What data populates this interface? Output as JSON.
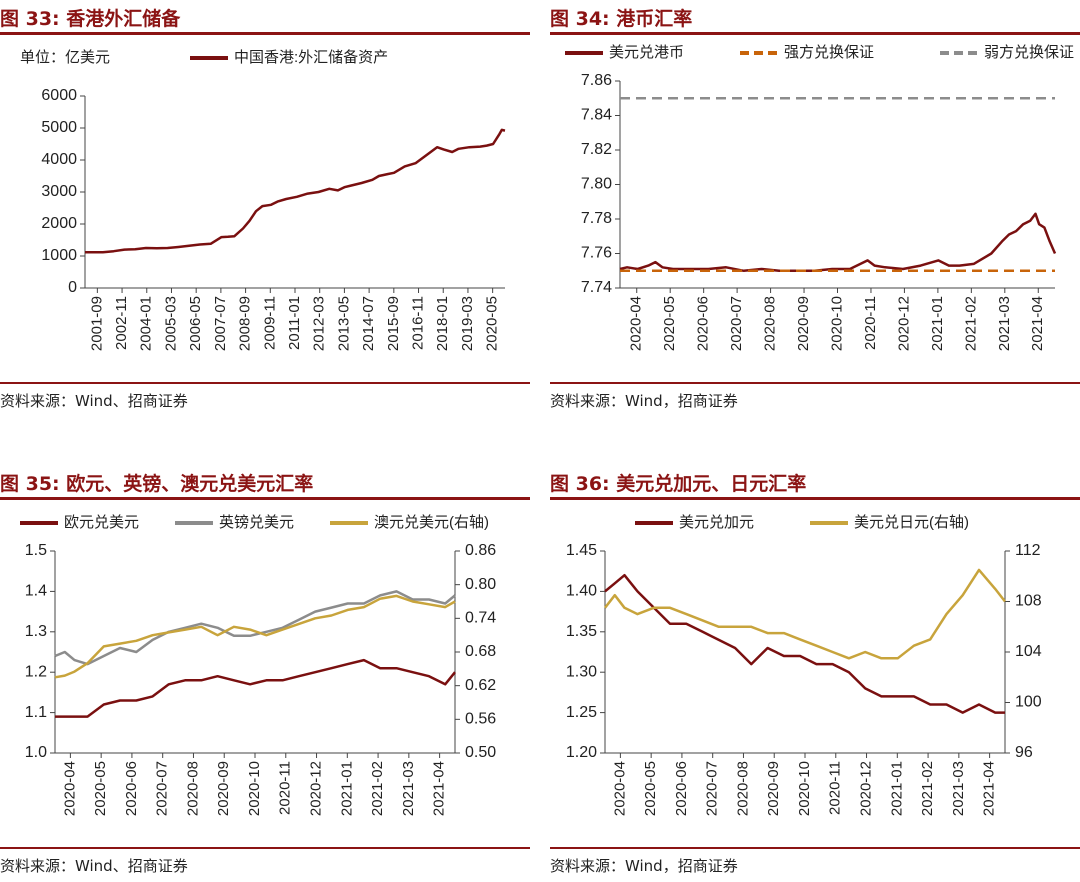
{
  "colors": {
    "brand": "#8b1414",
    "maroon": "#7a1010",
    "orange": "#c8640a",
    "gray": "#8c8c8c",
    "gold": "#c8a43c"
  },
  "panels": [
    {
      "title": "图 33:  香港外汇储备",
      "source": "资料来源：Wind、招商证券"
    },
    {
      "title": "图 34:  港币汇率",
      "source": "资料来源：Wind，招商证券"
    },
    {
      "title": "图 35:  欧元、英镑、澳元兑美元汇率",
      "source": "资料来源：Wind、招商证券"
    },
    {
      "title": "图 36:  美元兑加元、日元汇率",
      "source": "资料来源：Wind，招商证券"
    }
  ],
  "chart_data": [
    {
      "type": "line",
      "title": "香港外汇储备",
      "unit_label": "单位：亿美元",
      "ylim": [
        0,
        6000
      ],
      "yticks": [
        "0",
        "1000",
        "2000",
        "3000",
        "4000",
        "5000",
        "6000"
      ],
      "xticks": [
        "2001-09",
        "2002-11",
        "2004-01",
        "2005-03",
        "2006-05",
        "2007-07",
        "2008-09",
        "2009-11",
        "2011-01",
        "2012-03",
        "2013-05",
        "2014-07",
        "2015-09",
        "2016-11",
        "2018-01",
        "2019-03",
        "2020-05"
      ],
      "series": [
        {
          "name": "中国香港:外汇储备资产",
          "color": "#7a1010",
          "x": [
            2001.67,
            2002.5,
            2003.0,
            2003.5,
            2004.0,
            2004.5,
            2005.0,
            2005.5,
            2006.0,
            2006.5,
            2007.0,
            2007.5,
            2008.0,
            2008.3,
            2008.6,
            2009.0,
            2009.3,
            2009.6,
            2009.9,
            2010.3,
            2010.6,
            2011.0,
            2011.5,
            2012.0,
            2012.5,
            2013.0,
            2013.4,
            2013.7,
            2014.0,
            2014.5,
            2015.0,
            2015.3,
            2015.7,
            2016.0,
            2016.5,
            2017.0,
            2017.5,
            2018.0,
            2018.3,
            2018.7,
            2019.0,
            2019.5,
            2020.0,
            2020.3,
            2020.6,
            2020.9,
            2021.0,
            2021.15
          ],
          "values": [
            1120,
            1120,
            1150,
            1200,
            1210,
            1250,
            1240,
            1250,
            1280,
            1320,
            1360,
            1380,
            1590,
            1600,
            1620,
            1860,
            2100,
            2400,
            2560,
            2600,
            2700,
            2780,
            2850,
            2950,
            3000,
            3100,
            3050,
            3150,
            3200,
            3280,
            3380,
            3500,
            3560,
            3600,
            3800,
            3900,
            4150,
            4400,
            4330,
            4250,
            4350,
            4400,
            4420,
            4450,
            4500,
            4820,
            4940,
            4920
          ]
        }
      ]
    },
    {
      "type": "line",
      "title": "港币汇率",
      "ylim": [
        7.74,
        7.86
      ],
      "yticks": [
        "7.74",
        "7.76",
        "7.78",
        "7.80",
        "7.82",
        "7.84",
        "7.86"
      ],
      "xticks": [
        "2020-04",
        "2020-05",
        "2020-06",
        "2020-07",
        "2020-08",
        "2020-09",
        "2020-10",
        "2020-11",
        "2020-12",
        "2021-01",
        "2021-02",
        "2021-03",
        "2021-04"
      ],
      "series": [
        {
          "name": "美元兑港币",
          "color": "#7a1010",
          "x": [
            0.0,
            0.2,
            0.5,
            0.8,
            1.0,
            1.2,
            1.5,
            2.0,
            2.5,
            3.0,
            3.5,
            4.0,
            4.5,
            5.0,
            5.5,
            6.0,
            6.5,
            7.0,
            7.2,
            7.5,
            8.0,
            8.5,
            9.0,
            9.3,
            9.6,
            10.0,
            10.5,
            10.8,
            11.0,
            11.2,
            11.4,
            11.6,
            11.75,
            11.85,
            12.0,
            12.15,
            12.3
          ],
          "values": [
            7.751,
            7.752,
            7.751,
            7.753,
            7.755,
            7.752,
            7.751,
            7.751,
            7.751,
            7.752,
            7.75,
            7.751,
            7.75,
            7.75,
            7.75,
            7.751,
            7.751,
            7.756,
            7.753,
            7.752,
            7.751,
            7.753,
            7.756,
            7.753,
            7.753,
            7.754,
            7.76,
            7.767,
            7.771,
            7.773,
            7.777,
            7.779,
            7.783,
            7.777,
            7.775,
            7.767,
            7.76
          ]
        },
        {
          "name": "强方兑换保证",
          "color": "#c8640a",
          "dashed": true,
          "x": [
            0,
            12.3
          ],
          "values": [
            7.75,
            7.75
          ]
        },
        {
          "name": "弱方兑换保证",
          "color": "#8c8c8c",
          "dashed": true,
          "x": [
            0,
            12.3
          ],
          "values": [
            7.85,
            7.85
          ]
        }
      ]
    },
    {
      "type": "line",
      "title": "欧元、英镑、澳元兑美元汇率",
      "ylim": [
        1.0,
        1.5
      ],
      "yticks": [
        "1.0",
        "1.1",
        "1.2",
        "1.3",
        "1.4",
        "1.5"
      ],
      "y2lim": [
        0.5,
        0.86
      ],
      "y2ticks": [
        "0.50",
        "0.56",
        "0.62",
        "0.68",
        "0.74",
        "0.80",
        "0.86"
      ],
      "xticks": [
        "2020-04",
        "2020-05",
        "2020-06",
        "2020-07",
        "2020-08",
        "2020-09",
        "2020-10",
        "2020-11",
        "2020-12",
        "2021-01",
        "2021-02",
        "2021-03",
        "2021-04"
      ],
      "series": [
        {
          "name": "欧元兑美元",
          "color": "#7a1010",
          "axis": "left",
          "x": [
            0.0,
            0.5,
            1.0,
            1.5,
            2.0,
            2.5,
            3.0,
            3.5,
            4.0,
            4.5,
            5.0,
            5.5,
            6.0,
            6.5,
            7.0,
            7.5,
            8.0,
            8.5,
            9.0,
            9.5,
            10.0,
            10.5,
            11.0,
            11.5,
            12.0,
            12.3
          ],
          "values": [
            1.09,
            1.09,
            1.09,
            1.12,
            1.13,
            1.13,
            1.14,
            1.17,
            1.18,
            1.18,
            1.19,
            1.18,
            1.17,
            1.18,
            1.18,
            1.19,
            1.2,
            1.21,
            1.22,
            1.23,
            1.21,
            1.21,
            1.2,
            1.19,
            1.17,
            1.2
          ]
        },
        {
          "name": "英镑兑美元",
          "color": "#8c8c8c",
          "axis": "left",
          "x": [
            0.0,
            0.3,
            0.6,
            1.0,
            1.5,
            2.0,
            2.5,
            3.0,
            3.5,
            4.0,
            4.5,
            5.0,
            5.5,
            6.0,
            6.5,
            7.0,
            7.5,
            8.0,
            8.5,
            9.0,
            9.5,
            10.0,
            10.5,
            11.0,
            11.5,
            12.0,
            12.3
          ],
          "values": [
            1.24,
            1.25,
            1.23,
            1.22,
            1.24,
            1.26,
            1.25,
            1.28,
            1.3,
            1.31,
            1.32,
            1.31,
            1.29,
            1.29,
            1.3,
            1.31,
            1.33,
            1.35,
            1.36,
            1.37,
            1.37,
            1.39,
            1.4,
            1.38,
            1.38,
            1.37,
            1.39
          ]
        },
        {
          "name": "澳元兑美元(右轴)",
          "color": "#c8a43c",
          "axis": "right",
          "x": [
            0.0,
            0.3,
            0.6,
            1.0,
            1.5,
            2.0,
            2.5,
            3.0,
            3.5,
            4.0,
            4.5,
            5.0,
            5.5,
            6.0,
            6.5,
            7.0,
            7.5,
            8.0,
            8.5,
            9.0,
            9.5,
            10.0,
            10.5,
            11.0,
            11.5,
            12.0,
            12.3
          ],
          "values": [
            0.635,
            0.638,
            0.645,
            0.66,
            0.69,
            0.695,
            0.7,
            0.71,
            0.715,
            0.72,
            0.725,
            0.71,
            0.725,
            0.72,
            0.71,
            0.72,
            0.73,
            0.74,
            0.745,
            0.755,
            0.76,
            0.775,
            0.78,
            0.77,
            0.765,
            0.76,
            0.77
          ]
        }
      ]
    },
    {
      "type": "line",
      "title": "美元兑加元、日元汇率",
      "ylim": [
        1.2,
        1.45
      ],
      "yticks": [
        "1.20",
        "1.25",
        "1.30",
        "1.35",
        "1.40",
        "1.45"
      ],
      "y2lim": [
        96,
        112
      ],
      "y2ticks": [
        "96",
        "100",
        "104",
        "108",
        "112"
      ],
      "xticks": [
        "2020-04",
        "2020-05",
        "2020-06",
        "2020-07",
        "2020-08",
        "2020-09",
        "2020-10",
        "2020-11",
        "2020-12",
        "2021-01",
        "2021-02",
        "2021-03",
        "2021-04"
      ],
      "series": [
        {
          "name": "美元兑加元",
          "color": "#7a1010",
          "axis": "left",
          "x": [
            0.0,
            0.3,
            0.6,
            1.0,
            1.5,
            2.0,
            2.5,
            3.0,
            3.5,
            4.0,
            4.5,
            5.0,
            5.5,
            6.0,
            6.5,
            7.0,
            7.5,
            8.0,
            8.5,
            9.0,
            9.5,
            10.0,
            10.5,
            11.0,
            11.5,
            12.0,
            12.3
          ],
          "values": [
            1.4,
            1.41,
            1.42,
            1.4,
            1.38,
            1.36,
            1.36,
            1.35,
            1.34,
            1.33,
            1.31,
            1.33,
            1.32,
            1.32,
            1.31,
            1.31,
            1.3,
            1.28,
            1.27,
            1.27,
            1.27,
            1.26,
            1.26,
            1.25,
            1.26,
            1.25,
            1.25
          ]
        },
        {
          "name": "美元兑日元(右轴)",
          "color": "#c8a43c",
          "axis": "right",
          "x": [
            0.0,
            0.3,
            0.6,
            1.0,
            1.5,
            2.0,
            2.5,
            3.0,
            3.5,
            4.0,
            4.5,
            5.0,
            5.5,
            6.0,
            6.5,
            7.0,
            7.5,
            8.0,
            8.5,
            9.0,
            9.5,
            10.0,
            10.5,
            11.0,
            11.5,
            12.0,
            12.3
          ],
          "values": [
            107.5,
            108.5,
            107.5,
            107.0,
            107.5,
            107.5,
            107.0,
            106.5,
            106.0,
            106.0,
            106.0,
            105.5,
            105.5,
            105.0,
            104.5,
            104.0,
            103.5,
            104.0,
            103.5,
            103.5,
            104.5,
            105.0,
            107.0,
            108.5,
            110.5,
            109.0,
            108.0
          ]
        }
      ]
    }
  ]
}
